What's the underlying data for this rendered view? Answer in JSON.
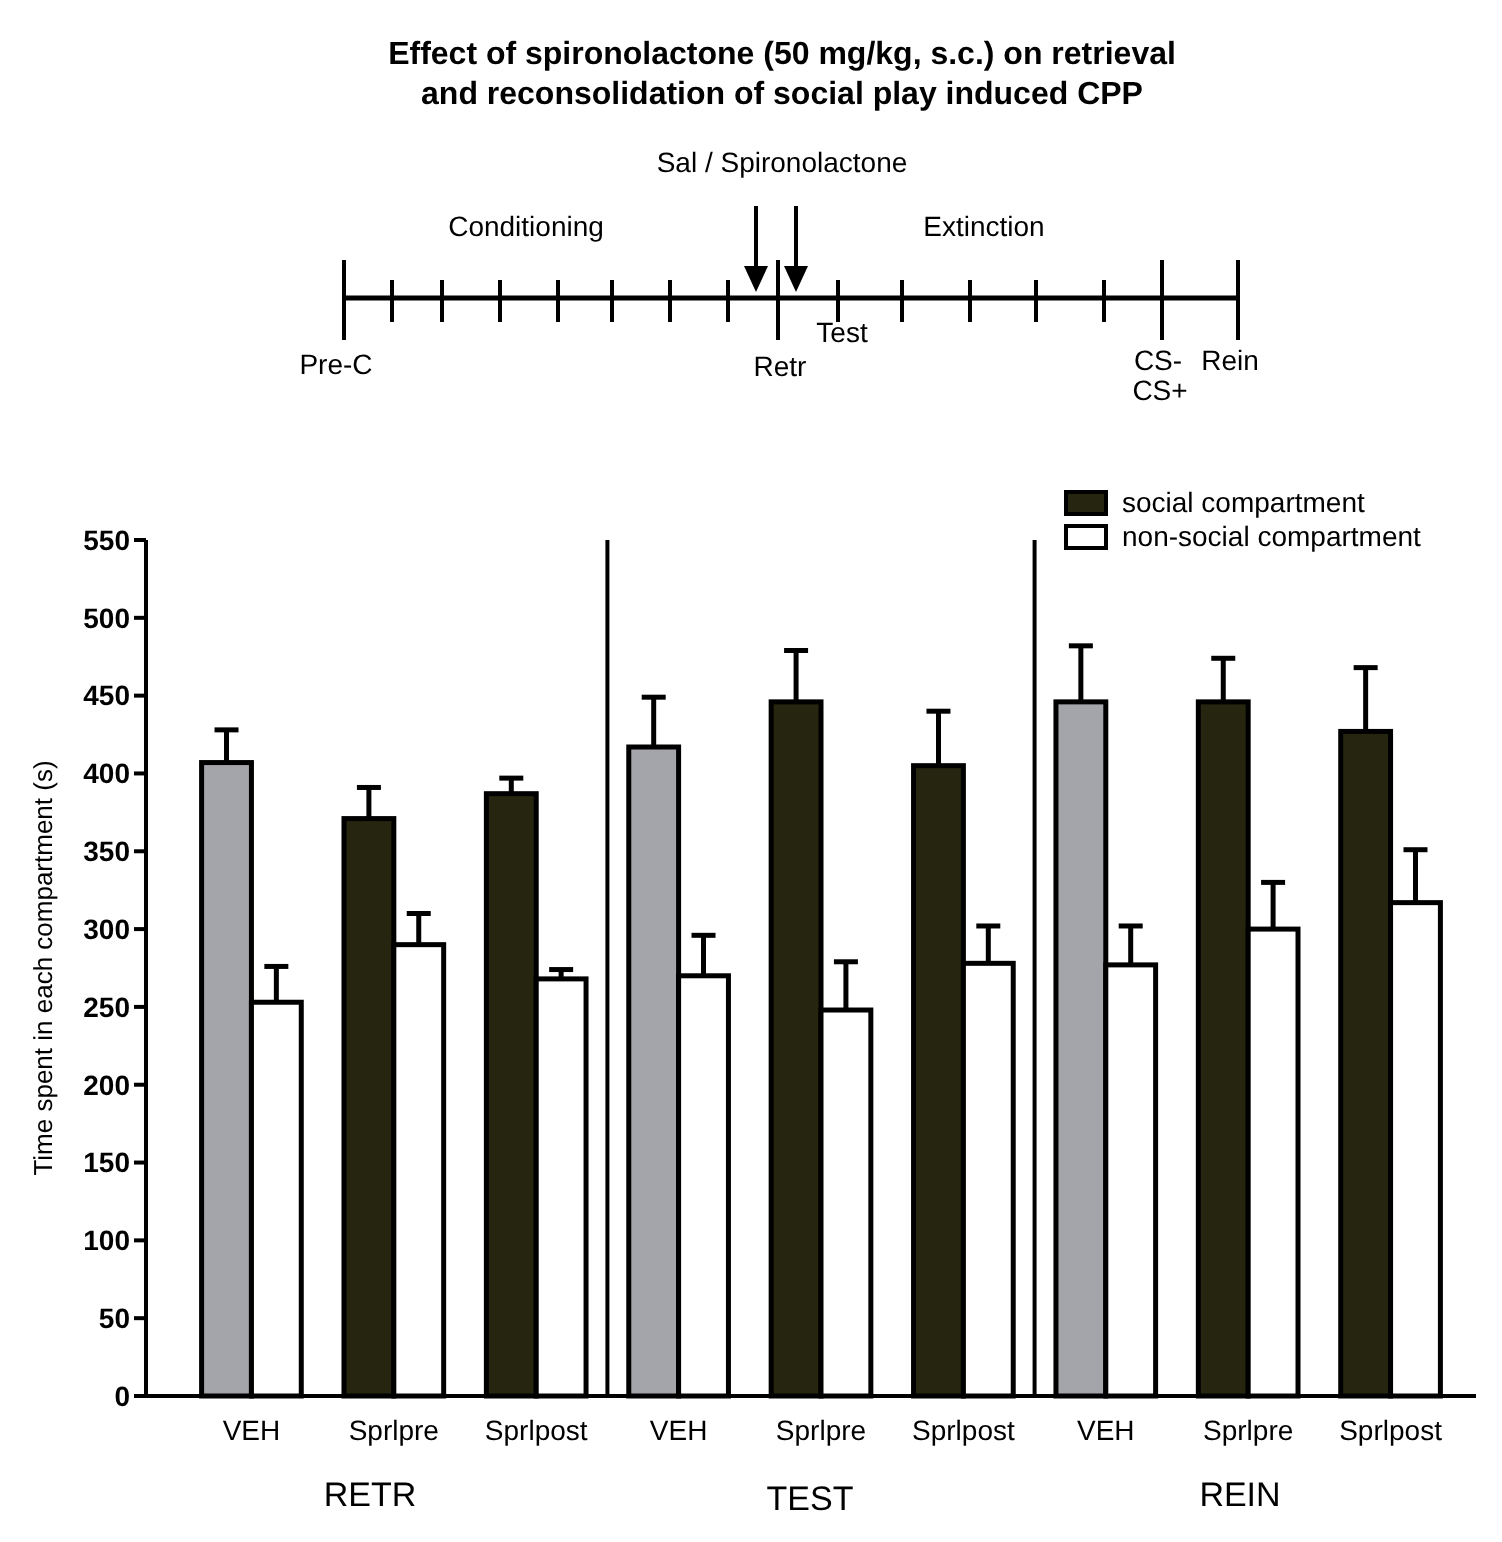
{
  "chart_data": {
    "type": "bar",
    "title": "Effect of spironolactone (50 mg/kg, s.c.) on retrieval and reconsolidation of social play induced CPP",
    "ylabel": "Time spent in each compartment (s)",
    "categories": [
      "VEH",
      "Sprlpre",
      "Sprlpost",
      "VEH",
      "Sprlpre",
      "Sprlpost",
      "VEH",
      "Sprlpre",
      "Sprlpost"
    ],
    "series": [
      {
        "name": "social compartment",
        "color": "#262610",
        "colors": [
          "#a4a4ab",
          "#262610",
          "#262610",
          "#a4a4ab",
          "#262610",
          "#262610",
          "#a4a4ab",
          "#262610",
          "#262610"
        ],
        "values": [
          407,
          371,
          387,
          417,
          446,
          405,
          446,
          446,
          427
        ],
        "errors": [
          [
            407,
            428
          ],
          [
            371,
            391
          ],
          [
            387,
            397
          ],
          [
            417,
            449
          ],
          [
            446,
            479
          ],
          [
            405,
            440
          ],
          [
            446,
            482
          ],
          [
            446,
            474
          ],
          [
            427,
            468
          ]
        ]
      },
      {
        "name": "non-social compartment",
        "color": "#ffffff",
        "values": [
          253,
          290,
          268,
          270,
          248,
          278,
          277,
          300,
          317
        ],
        "errors": [
          [
            253,
            276
          ],
          [
            290,
            310
          ],
          [
            268,
            274
          ],
          [
            270,
            296
          ],
          [
            248,
            279
          ],
          [
            278,
            302
          ],
          [
            277,
            302
          ],
          [
            300,
            330
          ],
          [
            317,
            351
          ]
        ]
      }
    ],
    "ylim": [
      0,
      550
    ],
    "yticks": [
      0,
      50,
      100,
      150,
      200,
      250,
      300,
      350,
      400,
      450,
      500,
      550
    ],
    "grid": false,
    "legend": "top right",
    "annotations": [
      "RETR",
      "TEST",
      "REIN",
      "Sal / Spironolactone",
      "Conditioning",
      "Extinction",
      "Pre-C",
      "Retr",
      "Test",
      "CS-",
      "CS+",
      "Rein"
    ]
  }
}
